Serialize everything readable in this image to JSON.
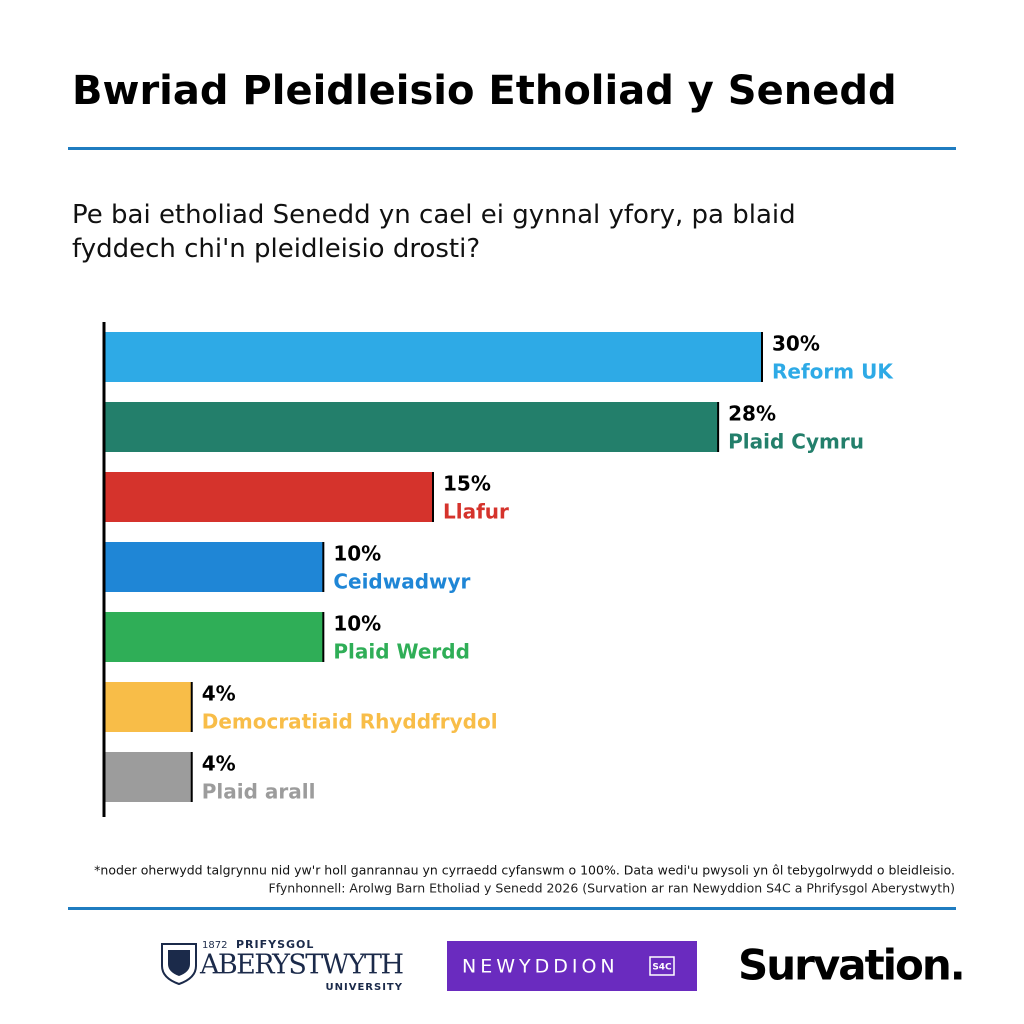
{
  "chart_data": {
    "type": "bar",
    "title": "Bwriad Pleidleisio Etholiad y Senedd",
    "subtitle": "Pe bai etholiad Senedd yn cael ei gynnal yfory, pa blaid fyddech chi'n pleidleisio drosti?",
    "categories": [
      "Reform UK",
      "Plaid Cymru",
      "Llafur",
      "Ceidwadwyr",
      "Plaid Werdd",
      "Democratiaid Rhyddfrydol",
      "Plaid arall"
    ],
    "values": [
      30,
      28,
      15,
      10,
      10,
      4,
      4
    ],
    "value_labels": [
      "30%",
      "28%",
      "15%",
      "10%",
      "10%",
      "4%",
      "4%"
    ],
    "colors": [
      "#2eaae6",
      "#237f6b",
      "#d5332c",
      "#1f86d6",
      "#2fae57",
      "#f8bd48",
      "#9c9c9c"
    ],
    "xlim": [
      0,
      30
    ],
    "footnote": "*noder oherwydd talgrynnu nid yw'r holl ganrannau yn cyrraedd cyfanswm o 100%. Data wedi'u pwysoli yn ôl tebygolrwydd o bleidleisio.",
    "source": "Ffynhonnell: Arolwg Barn Etholiad y Senedd 2026 (Survation ar ran Newyddion S4C a Phrifysgol Aberystwyth)"
  },
  "logos": {
    "aber_year": "1872",
    "aber_top": "PRIFYSGOL",
    "aber_name": "ABERYSTWYTH",
    "aber_bottom": "UNIVERSITY",
    "newyddion": "NEWYDDION",
    "s4c": "S4C",
    "survation": "Survation."
  }
}
